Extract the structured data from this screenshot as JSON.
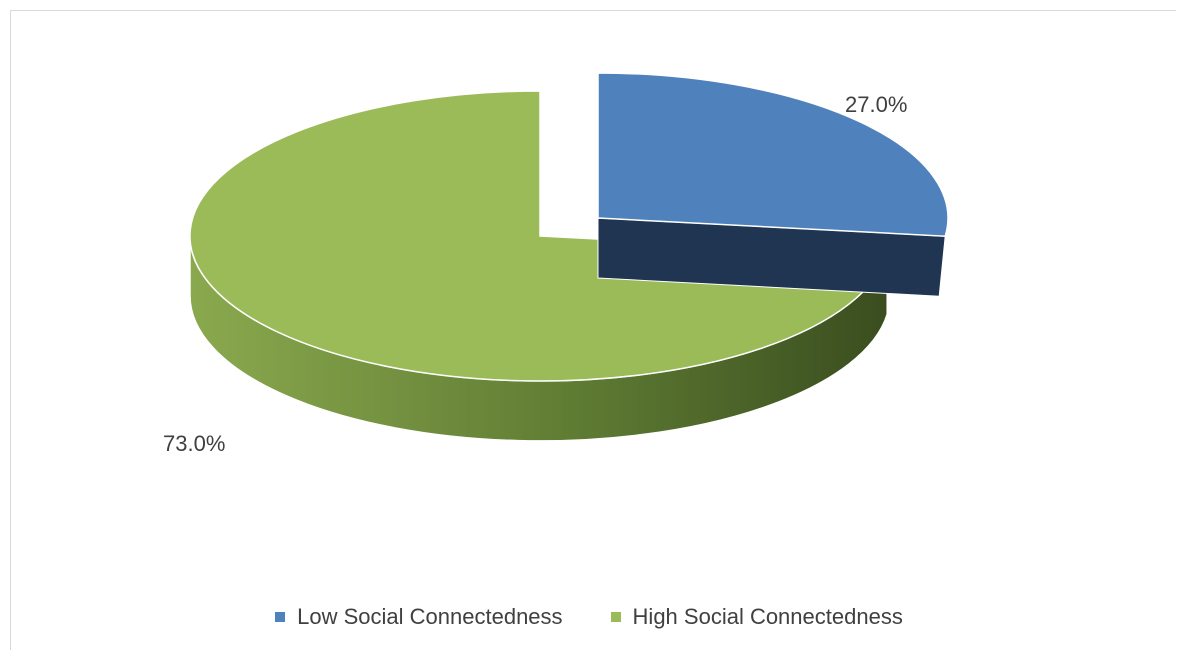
{
  "chart_data": {
    "type": "pie",
    "style": "3d-exploded",
    "title": "",
    "slices": [
      {
        "name": "Low Social Connectedness",
        "value": 27.0,
        "label": "27.0%",
        "color": "#4f81bd",
        "side_color": "#1f3552"
      },
      {
        "name": "High Social Connectedness",
        "value": 73.0,
        "label": "73.0%",
        "color": "#9bbb59",
        "side_color": "#5a7a2a"
      }
    ],
    "legend_position": "bottom"
  }
}
